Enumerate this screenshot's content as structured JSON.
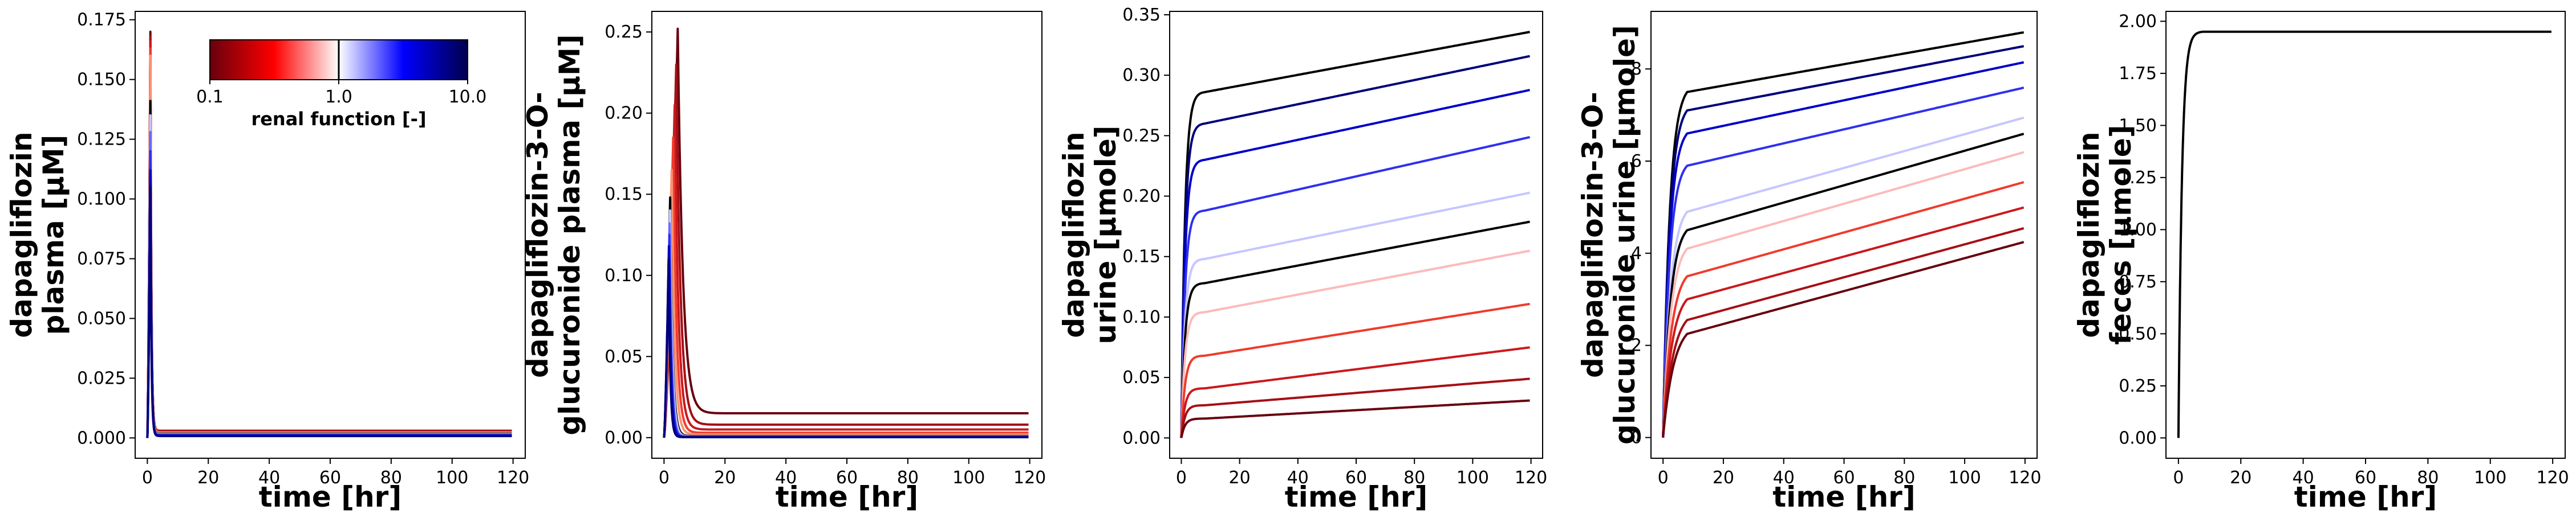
{
  "colorbar": {
    "label": "renal function [-]",
    "ticks": [
      "0.1",
      "1.0",
      "10.0"
    ],
    "scale": "log",
    "range": [
      0.1,
      10.0
    ],
    "colormap": [
      "#67000d",
      "#ff0000",
      "#ffffff",
      "#0000ff",
      "#00004d"
    ]
  },
  "chart_data": [
    {
      "type": "line",
      "ylabel": [
        "dapagliflozin",
        "plasma [µM]"
      ],
      "xlabel": "time [hr]",
      "xlim": [
        -4,
        124
      ],
      "ylim": [
        -0.0085,
        0.1785
      ],
      "xticks": [
        0,
        20,
        40,
        60,
        80,
        100,
        120
      ],
      "yticks": [
        0.0,
        0.025,
        0.05,
        0.075,
        0.1,
        0.125,
        0.15,
        0.175
      ],
      "ytick_labels": [
        "0.000",
        "0.025",
        "0.050",
        "0.075",
        "0.100",
        "0.125",
        "0.150",
        "0.175"
      ],
      "legend": "none",
      "model": "peak",
      "series": [
        {
          "color": "#67000d",
          "peak": 0.17,
          "tmax": 1.0,
          "tail": 0.003,
          "ka": 3.0
        },
        {
          "color": "#a50f15",
          "peak": 0.168,
          "tmax": 1.0,
          "tail": 0.0028,
          "ka": 3.0
        },
        {
          "color": "#cb181d",
          "peak": 0.166,
          "tmax": 1.0,
          "tail": 0.0026,
          "ka": 3.0
        },
        {
          "color": "#ef3b2c",
          "peak": 0.163,
          "tmax": 1.0,
          "tail": 0.0024,
          "ka": 3.0
        },
        {
          "color": "#fc9272",
          "peak": 0.16,
          "tmax": 1.0,
          "tail": 0.0022,
          "ka": 3.0
        },
        {
          "color": "#000000",
          "peak": 0.141,
          "tmax": 1.0,
          "tail": 0.0018,
          "ka": 3.0
        },
        {
          "color": "#c6c6ff",
          "peak": 0.135,
          "tmax": 1.0,
          "tail": 0.0016,
          "ka": 3.0
        },
        {
          "color": "#6a6aff",
          "peak": 0.128,
          "tmax": 1.0,
          "tail": 0.0014,
          "ka": 3.0
        },
        {
          "color": "#2f2ff0",
          "peak": 0.12,
          "tmax": 1.0,
          "tail": 0.0012,
          "ka": 3.0
        },
        {
          "color": "#0000c8",
          "peak": 0.112,
          "tmax": 1.0,
          "tail": 0.001,
          "ka": 3.0
        },
        {
          "color": "#00007a",
          "peak": 0.105,
          "tmax": 1.0,
          "tail": 0.0008,
          "ka": 3.0
        }
      ]
    },
    {
      "type": "line",
      "ylabel": [
        "dapagliflozin-3-O-",
        "glucuronide plasma [µM]"
      ],
      "xlabel": "time [hr]",
      "xlim": [
        -4,
        124
      ],
      "ylim": [
        -0.0127,
        0.2627
      ],
      "xticks": [
        0,
        20,
        40,
        60,
        80,
        100,
        120
      ],
      "yticks": [
        0.0,
        0.05,
        0.1,
        0.15,
        0.2,
        0.25
      ],
      "ytick_labels": [
        "0.00",
        "0.05",
        "0.10",
        "0.15",
        "0.20",
        "0.25"
      ],
      "legend": "none",
      "model": "peak",
      "series": [
        {
          "color": "#67000d",
          "peak": 0.252,
          "tmax": 4.5,
          "tail": 0.015,
          "ka": 0.6
        },
        {
          "color": "#a50f15",
          "peak": 0.23,
          "tmax": 4.0,
          "tail": 0.008,
          "ka": 0.7
        },
        {
          "color": "#cb181d",
          "peak": 0.205,
          "tmax": 3.5,
          "tail": 0.005,
          "ka": 0.8
        },
        {
          "color": "#ef3b2c",
          "peak": 0.185,
          "tmax": 3.0,
          "tail": 0.003,
          "ka": 0.9
        },
        {
          "color": "#fc9272",
          "peak": 0.165,
          "tmax": 2.5,
          "tail": 0.002,
          "ka": 1.0
        },
        {
          "color": "#000000",
          "peak": 0.148,
          "tmax": 2.0,
          "tail": 0.001,
          "ka": 1.2
        },
        {
          "color": "#c6c6ff",
          "peak": 0.14,
          "tmax": 2.0,
          "tail": 0.0008,
          "ka": 1.3
        },
        {
          "color": "#6a6aff",
          "peak": 0.132,
          "tmax": 1.8,
          "tail": 0.0006,
          "ka": 1.4
        },
        {
          "color": "#2f2ff0",
          "peak": 0.125,
          "tmax": 1.8,
          "tail": 0.0005,
          "ka": 1.5
        },
        {
          "color": "#0000c8",
          "peak": 0.118,
          "tmax": 1.6,
          "tail": 0.0004,
          "ka": 1.6
        },
        {
          "color": "#00007a",
          "peak": 0.11,
          "tmax": 1.5,
          "tail": 0.0003,
          "ka": 1.8
        }
      ]
    },
    {
      "type": "line",
      "ylabel": [
        "dapagliflozin",
        "urine [µmole]"
      ],
      "xlabel": "time [hr]",
      "xlim": [
        -4,
        124
      ],
      "ylim": [
        -0.0168,
        0.3528
      ],
      "xticks": [
        0,
        20,
        40,
        60,
        80,
        100,
        120
      ],
      "yticks": [
        0.0,
        0.05,
        0.1,
        0.15,
        0.2,
        0.25,
        0.3,
        0.35
      ],
      "ytick_labels": [
        "0.00",
        "0.05",
        "0.10",
        "0.15",
        "0.20",
        "0.25",
        "0.30",
        "0.35"
      ],
      "legend": "none",
      "model": "cumulative",
      "series": [
        {
          "color": "#000000",
          "v8": 0.286,
          "v120": 0.336,
          "k": 0.8
        },
        {
          "color": "#00007a",
          "v8": 0.26,
          "v120": 0.316,
          "k": 0.8
        },
        {
          "color": "#0000c8",
          "v8": 0.23,
          "v120": 0.288,
          "k": 0.8
        },
        {
          "color": "#2f2ff0",
          "v8": 0.188,
          "v120": 0.249,
          "k": 0.8
        },
        {
          "color": "#c6c6ff",
          "v8": 0.148,
          "v120": 0.203,
          "k": 0.8
        },
        {
          "color": "#000000",
          "v8": 0.128,
          "v120": 0.179,
          "k": 0.8
        },
        {
          "color": "#fcbaba",
          "v8": 0.104,
          "v120": 0.155,
          "k": 0.8
        },
        {
          "color": "#ef3b2c",
          "v8": 0.068,
          "v120": 0.111,
          "k": 0.8
        },
        {
          "color": "#cb181d",
          "v8": 0.041,
          "v120": 0.075,
          "k": 0.8
        },
        {
          "color": "#a50f15",
          "v8": 0.027,
          "v120": 0.049,
          "k": 0.8
        },
        {
          "color": "#67000d",
          "v8": 0.016,
          "v120": 0.031,
          "k": 0.8
        }
      ]
    },
    {
      "type": "line",
      "ylabel": [
        "dapagliflozin-3-O-",
        "glucuronide urine [µmole]"
      ],
      "xlabel": "time [hr]",
      "xlim": [
        -4,
        124
      ],
      "ylim": [
        -0.45,
        9.25
      ],
      "xticks": [
        0,
        20,
        40,
        60,
        80,
        100,
        120
      ],
      "yticks": [
        0,
        2,
        4,
        6,
        8
      ],
      "ytick_labels": [
        "0",
        "2",
        "4",
        "6",
        "8"
      ],
      "legend": "none",
      "model": "cumulative",
      "series": [
        {
          "color": "#000000",
          "v8": 7.5,
          "v120": 8.8,
          "k": 0.45
        },
        {
          "color": "#00007a",
          "v8": 7.1,
          "v120": 8.5,
          "k": 0.45
        },
        {
          "color": "#0000c8",
          "v8": 6.6,
          "v120": 8.15,
          "k": 0.45
        },
        {
          "color": "#2f2ff0",
          "v8": 5.9,
          "v120": 7.6,
          "k": 0.45
        },
        {
          "color": "#c6c6ff",
          "v8": 4.9,
          "v120": 6.95,
          "k": 0.4
        },
        {
          "color": "#000000",
          "v8": 4.5,
          "v120": 6.6,
          "k": 0.4
        },
        {
          "color": "#fcbaba",
          "v8": 4.1,
          "v120": 6.2,
          "k": 0.38
        },
        {
          "color": "#ef3b2c",
          "v8": 3.5,
          "v120": 5.55,
          "k": 0.35
        },
        {
          "color": "#cb181d",
          "v8": 3.0,
          "v120": 5.0,
          "k": 0.33
        },
        {
          "color": "#a50f15",
          "v8": 2.55,
          "v120": 4.55,
          "k": 0.3
        },
        {
          "color": "#67000d",
          "v8": 2.25,
          "v120": 4.25,
          "k": 0.28
        }
      ]
    },
    {
      "type": "line",
      "ylabel": [
        "dapagliflozin",
        "feces [µmole]"
      ],
      "xlabel": "time [hr]",
      "xlim": [
        -4,
        124
      ],
      "ylim": [
        -0.0975,
        2.0475
      ],
      "xticks": [
        0,
        20,
        40,
        60,
        80,
        100,
        120
      ],
      "yticks": [
        0.0,
        0.25,
        0.5,
        0.75,
        1.0,
        1.25,
        1.5,
        1.75,
        2.0
      ],
      "ytick_labels": [
        "0.00",
        "0.25",
        "0.50",
        "0.75",
        "1.00",
        "1.25",
        "1.50",
        "1.75",
        "2.00"
      ],
      "legend": "none",
      "model": "cumulative",
      "series": [
        {
          "color": "#000000",
          "v8": 1.95,
          "v120": 1.95,
          "k": 0.9
        }
      ]
    }
  ]
}
